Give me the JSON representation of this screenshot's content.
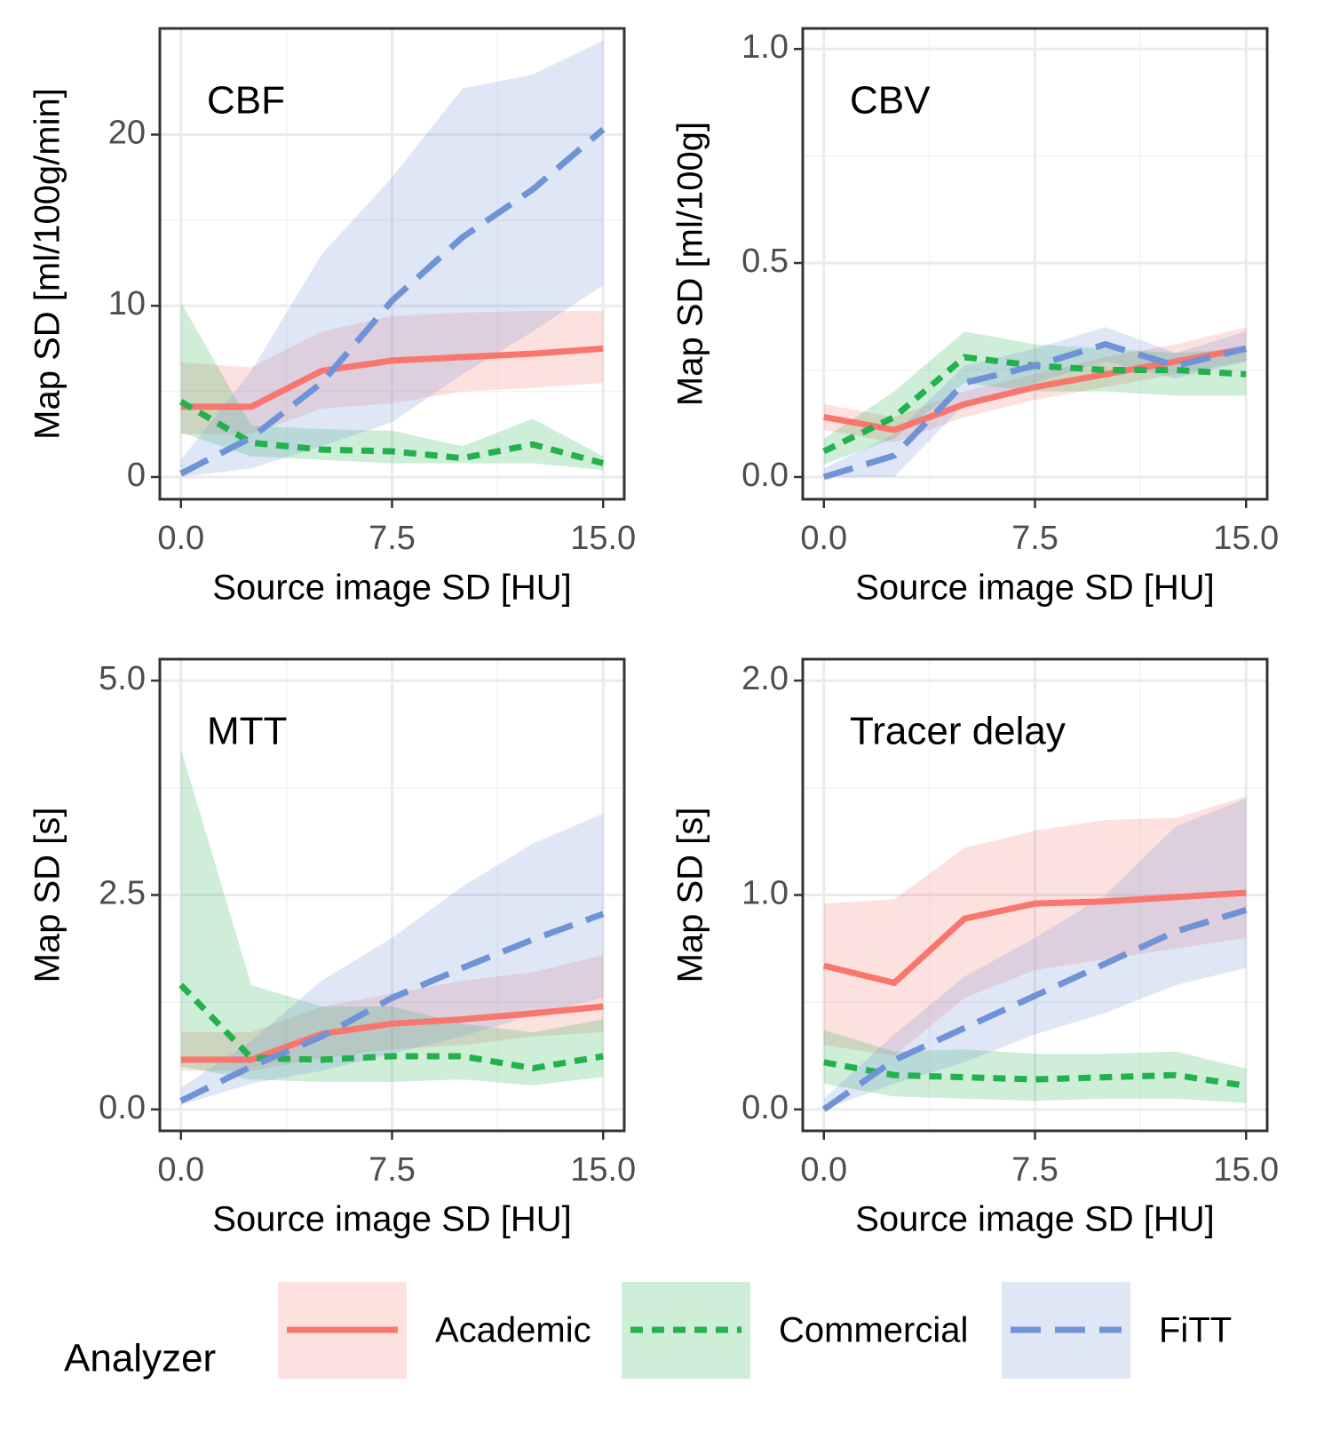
{
  "legend": {
    "title": "Analyzer",
    "entries": [
      {
        "name": "Academic",
        "color": "#F8766D",
        "dash": "solid"
      },
      {
        "name": "Commercial",
        "color": "#22B14C",
        "dash": "dotted"
      },
      {
        "name": "FiTT",
        "color": "#6F93D6",
        "dash": "dashed"
      }
    ]
  },
  "chart_data": [
    {
      "type": "line",
      "title": "CBF",
      "xlabel": "Source image SD [HU]",
      "ylabel": "Map SD [ml/100g/min]",
      "x": [
        0,
        2.5,
        5,
        7.5,
        10,
        12.5,
        15
      ],
      "xlim": [
        -0.75,
        15.75
      ],
      "xticks": [
        {
          "value": 0,
          "label": "0.0"
        },
        7.5,
        {
          "value": 15,
          "label": "15.0"
        }
      ],
      "ylim": [
        -1.3,
        26.2
      ],
      "yticks": [
        0,
        10,
        20
      ],
      "grid": true,
      "series": [
        {
          "values": [
            4.1,
            4.1,
            6.2,
            6.8,
            7.0,
            7.2,
            7.5
          ],
          "lower": [
            2.5,
            2.5,
            4.0,
            4.3,
            5.0,
            5.2,
            5.5
          ],
          "upper": [
            6.7,
            6.4,
            8.5,
            9.4,
            9.6,
            9.7,
            9.7
          ]
        },
        {
          "values": [
            4.4,
            2.0,
            1.6,
            1.5,
            1.1,
            1.9,
            0.8
          ],
          "lower": [
            2.6,
            1.2,
            1.0,
            0.8,
            0.8,
            0.8,
            0.4
          ],
          "upper": [
            10.2,
            3.0,
            2.8,
            2.7,
            1.8,
            3.4,
            1.2
          ]
        },
        {
          "values": [
            0.2,
            2.3,
            5.5,
            10.3,
            14.0,
            16.8,
            20.3
          ],
          "lower": [
            0,
            0.5,
            1.8,
            3.2,
            6.0,
            8.5,
            11.2
          ],
          "upper": [
            1.0,
            6.2,
            13.0,
            17.5,
            22.7,
            23.5,
            25.5
          ]
        }
      ]
    },
    {
      "type": "line",
      "title": "CBV",
      "xlabel": "Source image SD [HU]",
      "ylabel": "Map SD [ml/100g]",
      "x": [
        0,
        2.5,
        5,
        7.5,
        10,
        12.5,
        15
      ],
      "xlim": [
        -0.75,
        15.75
      ],
      "xticks": [
        {
          "value": 0,
          "label": "0.0"
        },
        7.5,
        {
          "value": 15,
          "label": "15.0"
        }
      ],
      "ylim": [
        -0.052,
        1.048
      ],
      "yticks": [
        {
          "value": 0,
          "label": "0.0"
        },
        0.5,
        {
          "value": 1,
          "label": "1.0"
        }
      ],
      "grid": true,
      "series": [
        {
          "values": [
            0.14,
            0.11,
            0.17,
            0.21,
            0.24,
            0.27,
            0.3
          ],
          "lower": [
            0.11,
            0.08,
            0.14,
            0.18,
            0.21,
            0.24,
            0.27
          ],
          "upper": [
            0.17,
            0.14,
            0.2,
            0.24,
            0.28,
            0.31,
            0.35
          ]
        },
        {
          "values": [
            0.06,
            0.14,
            0.28,
            0.26,
            0.25,
            0.25,
            0.24
          ],
          "lower": [
            0.03,
            0.09,
            0.22,
            0.2,
            0.2,
            0.19,
            0.19
          ],
          "upper": [
            0.09,
            0.2,
            0.34,
            0.31,
            0.3,
            0.29,
            0.3
          ]
        },
        {
          "values": [
            0.0,
            0.05,
            0.22,
            0.26,
            0.31,
            0.26,
            0.3
          ],
          "lower": [
            0,
            0.0,
            0.17,
            0.22,
            0.27,
            0.23,
            0.27
          ],
          "upper": [
            0.02,
            0.1,
            0.26,
            0.3,
            0.35,
            0.29,
            0.34
          ]
        }
      ]
    },
    {
      "type": "line",
      "title": "MTT",
      "xlabel": "Source image SD [HU]",
      "ylabel": "Map SD [s]",
      "x": [
        0,
        2.5,
        5,
        7.5,
        10,
        12.5,
        15
      ],
      "xlim": [
        -0.75,
        15.75
      ],
      "xticks": [
        {
          "value": 0,
          "label": "0.0"
        },
        7.5,
        {
          "value": 15,
          "label": "15.0"
        }
      ],
      "ylim": [
        -0.25,
        5.25
      ],
      "yticks": [
        {
          "value": 0,
          "label": "0.0"
        },
        2.5,
        {
          "value": 5,
          "label": "5.0"
        }
      ],
      "grid": true,
      "series": [
        {
          "values": [
            0.58,
            0.58,
            0.88,
            1.0,
            1.05,
            1.12,
            1.2
          ],
          "lower": [
            0.45,
            0.45,
            0.6,
            0.7,
            0.75,
            0.85,
            0.9
          ],
          "upper": [
            0.9,
            0.9,
            1.2,
            1.35,
            1.5,
            1.6,
            1.8
          ]
        },
        {
          "values": [
            1.45,
            0.6,
            0.58,
            0.62,
            0.62,
            0.48,
            0.62
          ],
          "lower": [
            0.5,
            0.35,
            0.32,
            0.32,
            0.35,
            0.28,
            0.38
          ],
          "upper": [
            4.2,
            1.45,
            1.2,
            1.2,
            1.0,
            0.9,
            1.05
          ]
        },
        {
          "values": [
            0.1,
            0.5,
            0.85,
            1.3,
            1.65,
            1.98,
            2.28
          ],
          "lower": [
            0.05,
            0.3,
            0.45,
            0.65,
            0.85,
            1.1,
            1.3
          ],
          "upper": [
            0.25,
            0.8,
            1.5,
            2.0,
            2.6,
            3.1,
            3.45
          ]
        }
      ]
    },
    {
      "type": "line",
      "title": "Tracer delay",
      "xlabel": "Source image SD [HU]",
      "ylabel": "Map SD [s]",
      "x": [
        0,
        2.5,
        5,
        7.5,
        10,
        12.5,
        15
      ],
      "xlim": [
        -0.75,
        15.75
      ],
      "xticks": [
        {
          "value": 0,
          "label": "0.0"
        },
        7.5,
        {
          "value": 15,
          "label": "15.0"
        }
      ],
      "ylim": [
        -0.1,
        2.1
      ],
      "yticks": [
        {
          "value": 0,
          "label": "0.0"
        },
        {
          "value": 1,
          "label": "1.0"
        },
        {
          "value": 2,
          "label": "2.0"
        }
      ],
      "grid": true,
      "series": [
        {
          "values": [
            0.67,
            0.59,
            0.89,
            0.96,
            0.97,
            0.99,
            1.01
          ],
          "lower": [
            0.3,
            0.25,
            0.52,
            0.65,
            0.7,
            0.75,
            0.8
          ],
          "upper": [
            0.96,
            0.98,
            1.22,
            1.3,
            1.35,
            1.36,
            1.46
          ]
        },
        {
          "values": [
            0.22,
            0.16,
            0.15,
            0.14,
            0.15,
            0.16,
            0.11
          ],
          "lower": [
            0.12,
            0.06,
            0.05,
            0.04,
            0.05,
            0.05,
            0.03
          ],
          "upper": [
            0.37,
            0.27,
            0.28,
            0.26,
            0.26,
            0.27,
            0.19
          ]
        },
        {
          "values": [
            0.0,
            0.23,
            0.38,
            0.53,
            0.68,
            0.83,
            0.93
          ],
          "lower": [
            0,
            0.12,
            0.22,
            0.35,
            0.45,
            0.58,
            0.66
          ],
          "upper": [
            0.05,
            0.35,
            0.62,
            0.8,
            1.0,
            1.32,
            1.45
          ]
        }
      ]
    }
  ]
}
